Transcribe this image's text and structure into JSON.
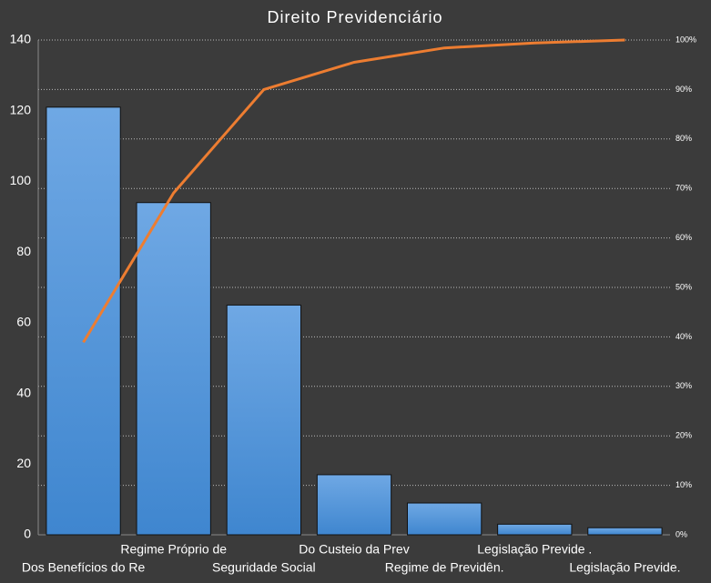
{
  "chart_data": {
    "type": "pareto",
    "title": "Direito Previdenciário",
    "categories": [
      "Dos Benefícios do Re",
      "Regime Próprio  de",
      "Seguridade Social",
      "Do Custeio da Prev",
      "Regime de Previdên.",
      "Legislação Previde .",
      "Legislação Previde."
    ],
    "series": [
      {
        "type": "bar",
        "color": "#4a90d9",
        "values": [
          121,
          94,
          65,
          17,
          9,
          3,
          2
        ]
      },
      {
        "type": "line",
        "color": "#ed7d31",
        "axis": "y2",
        "values": [
          38.9,
          69.1,
          90.0,
          95.5,
          98.4,
          99.4,
          100
        ]
      }
    ],
    "ylim": [
      0,
      140
    ],
    "yticks": [
      0,
      20,
      40,
      60,
      80,
      100,
      120,
      140
    ],
    "y2lim": [
      0,
      100
    ],
    "y2ticks": [
      {
        "value": 0,
        "label": "0%"
      },
      {
        "value": 10,
        "label": "10%"
      },
      {
        "value": 20,
        "label": "20%"
      },
      {
        "value": 30,
        "label": "30%"
      },
      {
        "value": 40,
        "label": "40%"
      },
      {
        "value": 50,
        "label": "50%"
      },
      {
        "value": 60,
        "label": "60%"
      },
      {
        "value": 70,
        "label": "70%"
      },
      {
        "value": 80,
        "label": "80%"
      },
      {
        "value": 90,
        "label": "90%"
      },
      {
        "value": 100,
        "label": "100%"
      }
    ],
    "grid": true
  }
}
